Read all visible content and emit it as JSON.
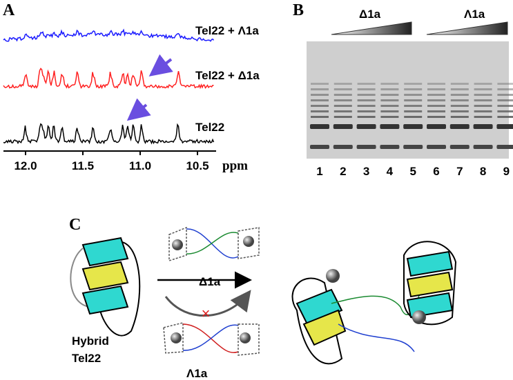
{
  "panels": {
    "a": {
      "label": "A",
      "traces": [
        "Tel22 + Λ1a",
        "Tel22 + Δ1a",
        "Tel22"
      ],
      "ticks": [
        "12.0",
        "11.5",
        "11.0",
        "10.5"
      ],
      "unit": "ppm"
    },
    "b": {
      "label": "B",
      "groups": [
        "Δ1a",
        "Λ1a"
      ],
      "lanes": [
        "1",
        "2",
        "3",
        "4",
        "5",
        "6",
        "7",
        "8",
        "9"
      ]
    },
    "c": {
      "label": "C",
      "top": "Δ1a",
      "bottom": "Λ1a",
      "name": [
        "Hybrid",
        "Tel22"
      ]
    }
  }
}
